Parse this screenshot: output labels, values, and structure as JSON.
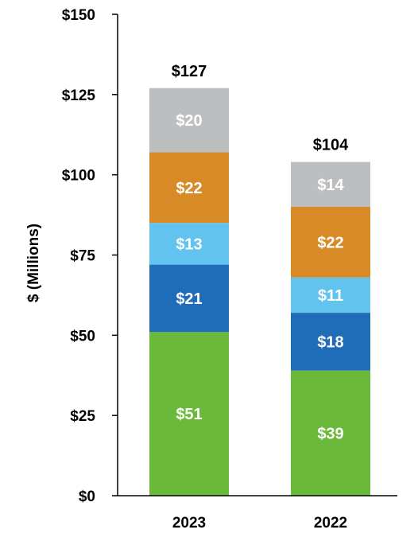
{
  "chart_data": {
    "type": "bar",
    "stacked": true,
    "categories": [
      "2023",
      "2022"
    ],
    "ylabel": "$ (Millions)",
    "ylim": [
      0,
      150
    ],
    "yticks": [
      "$0",
      "$25",
      "$50",
      "$75",
      "$100",
      "$125",
      "$150"
    ],
    "ytick_values": [
      0,
      25,
      50,
      75,
      100,
      125,
      150
    ],
    "grid": false,
    "series": [
      {
        "color": "#6ab93a",
        "values": [
          51,
          39
        ],
        "labels": [
          "$51",
          "$39"
        ]
      },
      {
        "color": "#1f6db8",
        "values": [
          21,
          18
        ],
        "labels": [
          "$21",
          "$18"
        ]
      },
      {
        "color": "#62c3ee",
        "values": [
          13,
          11
        ],
        "labels": [
          "$13",
          "$11"
        ]
      },
      {
        "color": "#d88a27",
        "values": [
          22,
          22
        ],
        "labels": [
          "$22",
          "$22"
        ]
      },
      {
        "color": "#bcbec0",
        "values": [
          20,
          14
        ],
        "labels": [
          "$20",
          "$14"
        ]
      }
    ],
    "totals": [
      127,
      104
    ],
    "total_labels": [
      "$127",
      "$104"
    ]
  }
}
